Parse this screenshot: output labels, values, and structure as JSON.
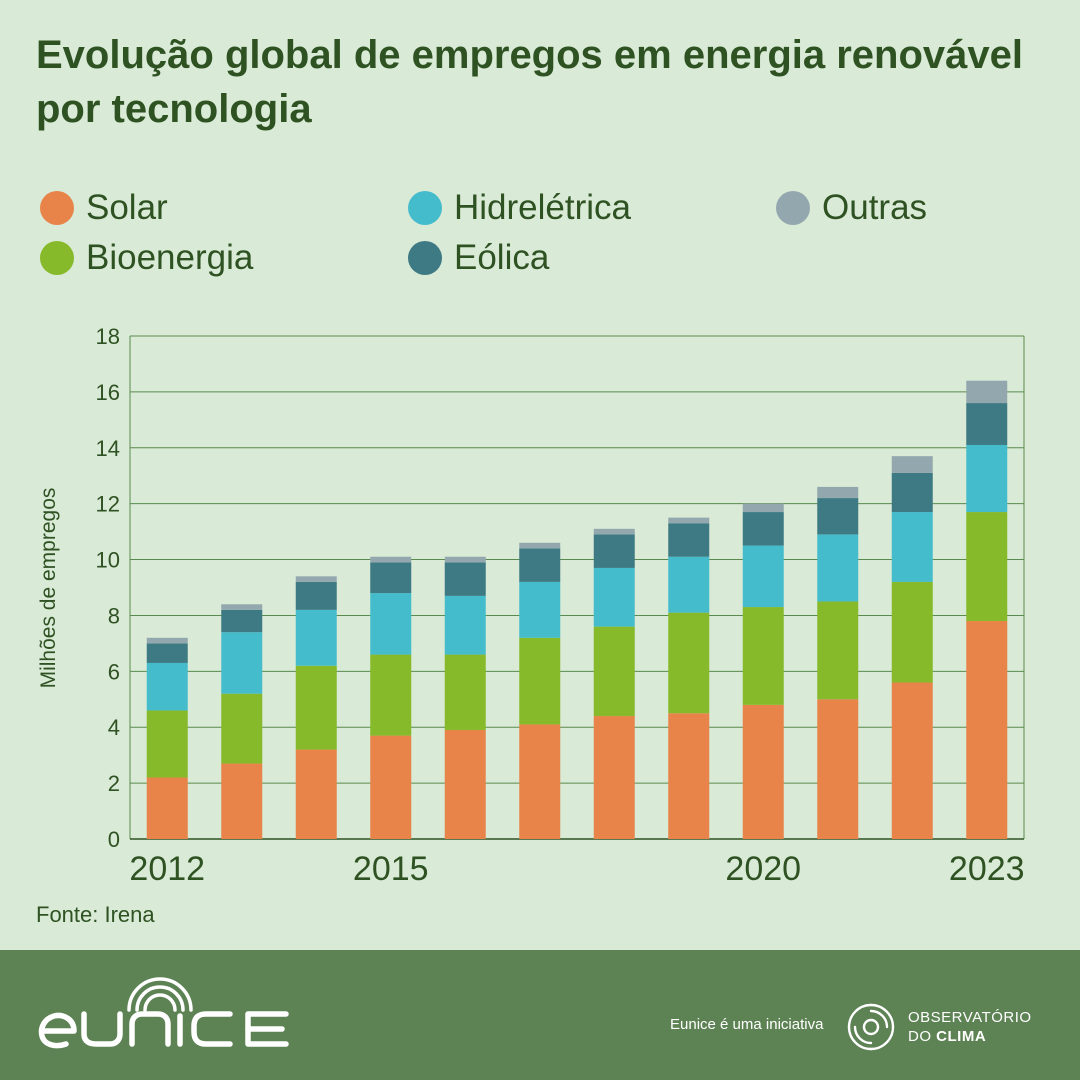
{
  "title": "Evolução global de empregos em energia renovável por tecnologia",
  "source": "Fonte: Irena",
  "footer": {
    "initiative": "Eunice é uma iniciativa",
    "obs_line1": "OBSERVATÓRIO",
    "obs_line2_a": "DO ",
    "obs_line2_b": "CLIMA",
    "logo_text": "eunice"
  },
  "legend": [
    {
      "name": "Solar",
      "color": "#e8834a"
    },
    {
      "name": "Hidrelétrica",
      "color": "#45bccb"
    },
    {
      "name": "Outras",
      "color": "#93a8ae"
    },
    {
      "name": "Bioenergia",
      "color": "#86ba2a"
    },
    {
      "name": "Eólica",
      "color": "#3e7a84"
    }
  ],
  "chart_data": {
    "type": "bar",
    "stacked": true,
    "title": "Evolução global de empregos em energia renovável por tecnologia",
    "ylabel": "Milhões de empregos",
    "xlabel": "",
    "ylim": [
      0,
      18
    ],
    "yticks": [
      0,
      2,
      4,
      6,
      8,
      10,
      12,
      14,
      16,
      18
    ],
    "grid": true,
    "legend_position": "top",
    "categories": [
      "2012",
      "2013",
      "2014",
      "2015",
      "2016",
      "2017",
      "2018",
      "2019",
      "2020",
      "2021",
      "2022",
      "2023"
    ],
    "x_tick_labels": [
      "2012",
      "",
      "",
      "2015",
      "",
      "",
      "",
      "",
      "2020",
      "",
      "",
      "2023"
    ],
    "series": [
      {
        "name": "Solar",
        "color": "#e8834a",
        "values": [
          2.2,
          2.7,
          3.2,
          3.7,
          3.9,
          4.1,
          4.4,
          4.5,
          4.8,
          5.0,
          5.6,
          7.8
        ]
      },
      {
        "name": "Bioenergia",
        "color": "#86ba2a",
        "values": [
          2.4,
          2.5,
          3.0,
          2.9,
          2.7,
          3.1,
          3.2,
          3.6,
          3.5,
          3.5,
          3.6,
          3.9
        ]
      },
      {
        "name": "Hidrelétrica",
        "color": "#45bccb",
        "values": [
          1.7,
          2.2,
          2.0,
          2.2,
          2.1,
          2.0,
          2.1,
          2.0,
          2.2,
          2.4,
          2.5,
          2.4
        ]
      },
      {
        "name": "Eólica",
        "color": "#3e7a84",
        "values": [
          0.7,
          0.8,
          1.0,
          1.1,
          1.2,
          1.2,
          1.2,
          1.2,
          1.2,
          1.3,
          1.4,
          1.5
        ]
      },
      {
        "name": "Outras",
        "color": "#93a8ae",
        "values": [
          0.2,
          0.2,
          0.2,
          0.2,
          0.2,
          0.2,
          0.2,
          0.2,
          0.3,
          0.4,
          0.6,
          0.8
        ]
      }
    ]
  }
}
